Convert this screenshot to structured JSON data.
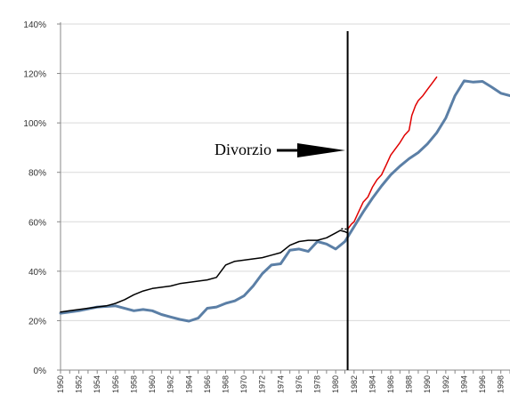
{
  "chart_data": {
    "type": "line",
    "title": "",
    "xlabel": "",
    "ylabel": "",
    "xlim": [
      1950,
      1999
    ],
    "ylim": [
      0,
      140
    ],
    "y_ticks": [
      0,
      20,
      40,
      60,
      80,
      100,
      120,
      140
    ],
    "y_tick_labels": [
      "0%",
      "20%",
      "40%",
      "60%",
      "80%",
      "100%",
      "120%",
      "140%"
    ],
    "x_ticks": [
      1950,
      1952,
      1954,
      1956,
      1958,
      1960,
      1962,
      1964,
      1966,
      1968,
      1970,
      1972,
      1974,
      1976,
      1978,
      1980,
      1982,
      1984,
      1986,
      1988,
      1990,
      1992,
      1994,
      1996,
      1998
    ],
    "x_tick_labels": [
      "1950",
      "1952",
      "1954",
      "1956",
      "1958",
      "1960",
      "1962",
      "1964",
      "1966",
      "1968",
      "1970",
      "1972",
      "1974",
      "1976",
      "1978",
      "1980",
      "1982",
      "1984",
      "1986",
      "1988",
      "1990",
      "1992",
      "1994",
      "1996",
      "1998"
    ],
    "grid": "horizontal",
    "legend": "none",
    "colors": {
      "series_a": "#5b7fa6",
      "series_b": "#000000",
      "series_c": "#e00000",
      "axis": "#888888",
      "grid": "#d9d9d9"
    },
    "series": [
      {
        "color": "#5b7fa6",
        "x": [
          1950,
          1952,
          1954,
          1956,
          1958,
          1959,
          1960,
          1961,
          1962,
          1963,
          1964,
          1965,
          1966,
          1967,
          1968,
          1969,
          1970,
          1971,
          1972,
          1973,
          1974,
          1975,
          1976,
          1977,
          1978,
          1979,
          1980,
          1981,
          1982,
          1983,
          1984,
          1985,
          1986,
          1987,
          1988,
          1989,
          1990,
          1991,
          1992,
          1993,
          1994,
          1995,
          1996,
          1997,
          1998,
          1999
        ],
        "y": [
          23,
          24,
          25.5,
          26,
          24,
          24.5,
          24,
          22.5,
          21.5,
          20.5,
          19.8,
          21,
          25,
          25.5,
          27,
          28,
          30,
          34,
          39,
          42.5,
          43,
          48.5,
          49,
          48,
          52,
          51,
          49,
          52,
          58,
          64,
          69.5,
          74.5,
          79,
          82.5,
          85.5,
          88,
          91.5,
          96,
          102,
          111,
          117,
          116.5,
          116.8,
          114.5,
          112,
          111
        ]
      },
      {
        "color": "#000000",
        "x": [
          1950,
          1951,
          1952,
          1953,
          1954,
          1955,
          1956,
          1957,
          1958,
          1959,
          1960,
          1961,
          1962,
          1963,
          1964,
          1965,
          1966,
          1967,
          1968,
          1969,
          1970,
          1971,
          1972,
          1973,
          1974,
          1975,
          1976,
          1977,
          1978,
          1979,
          1980,
          1980.5,
          1981,
          1981.3
        ],
        "y": [
          23.5,
          24,
          24.5,
          25,
          25.5,
          26,
          27,
          28.5,
          30.5,
          32,
          33,
          33.5,
          34,
          35,
          35.5,
          36,
          36.5,
          37.5,
          42.5,
          44,
          44.5,
          45,
          45.5,
          46.5,
          47.5,
          50.5,
          52,
          52.5,
          52.5,
          53.5,
          55.5,
          56.5,
          56,
          55.5
        ]
      },
      {
        "color": "#e00000",
        "x": [
          1981.3,
          1981.7,
          1982,
          1982.5,
          1983,
          1983.5,
          1984,
          1984.5,
          1985,
          1985.5,
          1986,
          1986.5,
          1987,
          1987.5,
          1988,
          1988.3,
          1988.7,
          1989,
          1989.5,
          1990,
          1990.5,
          1991
        ],
        "y": [
          57,
          59,
          60,
          64,
          68,
          70,
          74,
          77,
          79,
          83,
          87,
          89.5,
          92,
          95,
          97,
          103,
          107,
          109,
          111,
          113.5,
          116,
          118.5
        ]
      }
    ],
    "annotations": [
      {
        "text": "Divorzio",
        "x": 1981.3
      }
    ]
  }
}
